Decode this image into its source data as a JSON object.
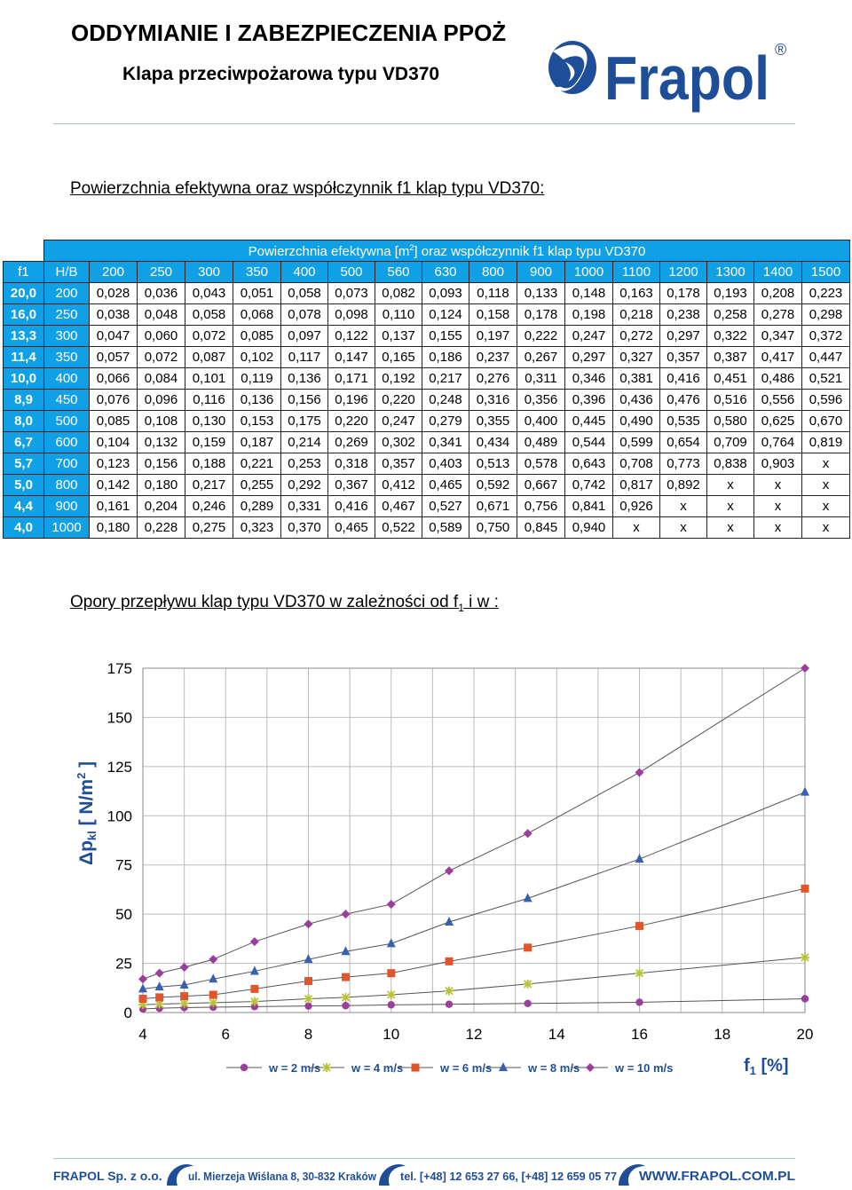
{
  "header": {
    "title": "ODDYMIANIE I ZABEZPIECZENIA PPOŻ",
    "subtitle": "Klapa przeciwpożarowa typu  VD370",
    "logo_text": "Frapol",
    "logo_reg": "®"
  },
  "section1_title": "Powierzchnia efektywna oraz współczynnik f1 klap typu VD370:",
  "table": {
    "caption_pre": "Powierzchnia efektywna [m",
    "caption_sup": "2",
    "caption_post": "] oraz współczynnik f1 klap typu VD370",
    "col_f1": "f1",
    "col_hb": "H/B",
    "widths": [
      "200",
      "250",
      "300",
      "350",
      "400",
      "500",
      "560",
      "630",
      "800",
      "900",
      "1000",
      "1100",
      "1200",
      "1300",
      "1400",
      "1500"
    ],
    "rows": [
      {
        "f1": "20,0",
        "hb": "200",
        "v": [
          "0,028",
          "0,036",
          "0,043",
          "0,051",
          "0,058",
          "0,073",
          "0,082",
          "0,093",
          "0,118",
          "0,133",
          "0,148",
          "0,163",
          "0,178",
          "0,193",
          "0,208",
          "0,223"
        ]
      },
      {
        "f1": "16,0",
        "hb": "250",
        "v": [
          "0,038",
          "0,048",
          "0,058",
          "0,068",
          "0,078",
          "0,098",
          "0,110",
          "0,124",
          "0,158",
          "0,178",
          "0,198",
          "0,218",
          "0,238",
          "0,258",
          "0,278",
          "0,298"
        ]
      },
      {
        "f1": "13,3",
        "hb": "300",
        "v": [
          "0,047",
          "0,060",
          "0,072",
          "0,085",
          "0,097",
          "0,122",
          "0,137",
          "0,155",
          "0,197",
          "0,222",
          "0,247",
          "0,272",
          "0,297",
          "0,322",
          "0,347",
          "0,372"
        ]
      },
      {
        "f1": "11,4",
        "hb": "350",
        "v": [
          "0,057",
          "0,072",
          "0,087",
          "0,102",
          "0,117",
          "0,147",
          "0,165",
          "0,186",
          "0,237",
          "0,267",
          "0,297",
          "0,327",
          "0,357",
          "0,387",
          "0,417",
          "0,447"
        ]
      },
      {
        "f1": "10,0",
        "hb": "400",
        "v": [
          "0,066",
          "0,084",
          "0,101",
          "0,119",
          "0,136",
          "0,171",
          "0,192",
          "0,217",
          "0,276",
          "0,311",
          "0,346",
          "0,381",
          "0,416",
          "0,451",
          "0,486",
          "0,521"
        ]
      },
      {
        "f1": "8,9",
        "hb": "450",
        "v": [
          "0,076",
          "0,096",
          "0,116",
          "0,136",
          "0,156",
          "0,196",
          "0,220",
          "0,248",
          "0,316",
          "0,356",
          "0,396",
          "0,436",
          "0,476",
          "0,516",
          "0,556",
          "0,596"
        ]
      },
      {
        "f1": "8,0",
        "hb": "500",
        "v": [
          "0,085",
          "0,108",
          "0,130",
          "0,153",
          "0,175",
          "0,220",
          "0,247",
          "0,279",
          "0,355",
          "0,400",
          "0,445",
          "0,490",
          "0,535",
          "0,580",
          "0,625",
          "0,670"
        ]
      },
      {
        "f1": "6,7",
        "hb": "600",
        "v": [
          "0,104",
          "0,132",
          "0,159",
          "0,187",
          "0,214",
          "0,269",
          "0,302",
          "0,341",
          "0,434",
          "0,489",
          "0,544",
          "0,599",
          "0,654",
          "0,709",
          "0,764",
          "0,819"
        ]
      },
      {
        "f1": "5,7",
        "hb": "700",
        "v": [
          "0,123",
          "0,156",
          "0,188",
          "0,221",
          "0,253",
          "0,318",
          "0,357",
          "0,403",
          "0,513",
          "0,578",
          "0,643",
          "0,708",
          "0,773",
          "0,838",
          "0,903",
          "x"
        ]
      },
      {
        "f1": "5,0",
        "hb": "800",
        "v": [
          "0,142",
          "0,180",
          "0,217",
          "0,255",
          "0,292",
          "0,367",
          "0,412",
          "0,465",
          "0,592",
          "0,667",
          "0,742",
          "0,817",
          "0,892",
          "x",
          "x",
          "x"
        ]
      },
      {
        "f1": "4,4",
        "hb": "900",
        "v": [
          "0,161",
          "0,204",
          "0,246",
          "0,289",
          "0,331",
          "0,416",
          "0,467",
          "0,527",
          "0,671",
          "0,756",
          "0,841",
          "0,926",
          "x",
          "x",
          "x",
          "x"
        ]
      },
      {
        "f1": "4,0",
        "hb": "1000",
        "v": [
          "0,180",
          "0,228",
          "0,275",
          "0,323",
          "0,370",
          "0,465",
          "0,522",
          "0,589",
          "0,750",
          "0,845",
          "0,940",
          "x",
          "x",
          "x",
          "x",
          "x"
        ]
      }
    ]
  },
  "section2": {
    "pre": "Opory przepływu klap typu VD370 w zależności od f",
    "sub": "1",
    "post": " i w :"
  },
  "chart_data": {
    "type": "line",
    "title": "",
    "xlabel": "f",
    "xlabel_sub": "1",
    "xlabel_unit": " [%]",
    "ylabel": "Δp",
    "ylabel_sub": "kl",
    "ylabel_unit": " [ N/m",
    "ylabel_sup": "2",
    "ylabel_end": " ]",
    "xlim": [
      4,
      20
    ],
    "ylim": [
      0,
      175
    ],
    "xticks": [
      4,
      6,
      8,
      10,
      12,
      14,
      16,
      18,
      20
    ],
    "yticks": [
      0,
      25,
      50,
      75,
      100,
      125,
      150,
      175
    ],
    "grid": true,
    "legend_position": "bottom",
    "series": [
      {
        "name": "w = 2 m/s",
        "color": "#9b3d9b",
        "marker": "circle",
        "x": [
          4,
          4.4,
          5,
          5.7,
          6.7,
          8,
          8.9,
          10,
          11.4,
          13.3,
          16,
          20
        ],
        "y": [
          1.8,
          2.2,
          2.5,
          2.7,
          3.0,
          3.3,
          3.5,
          3.9,
          4.2,
          4.6,
          5.2,
          7.0
        ]
      },
      {
        "name": "w = 4 m/s",
        "color": "#b8c23a",
        "marker": "star",
        "x": [
          4,
          4.4,
          5,
          5.7,
          6.7,
          8,
          8.9,
          10,
          11.4,
          13.3,
          16,
          20
        ],
        "y": [
          4,
          4.3,
          4.6,
          5,
          5.6,
          7,
          7.7,
          9,
          11,
          14.5,
          20,
          28
        ]
      },
      {
        "name": "w = 6 m/s",
        "color": "#e2552a",
        "marker": "square",
        "x": [
          4,
          4.4,
          5,
          5.7,
          6.7,
          8,
          8.9,
          10,
          11.4,
          13.3,
          16,
          20
        ],
        "y": [
          7,
          7.7,
          8.3,
          9,
          12,
          16,
          18,
          20,
          26,
          33,
          44,
          63
        ]
      },
      {
        "name": "w = 8 m/s",
        "color": "#3a5fb0",
        "marker": "triangle",
        "x": [
          4,
          4.4,
          5,
          5.7,
          6.7,
          8,
          8.9,
          10,
          11.4,
          13.3,
          16,
          20
        ],
        "y": [
          12,
          13,
          14,
          17,
          21,
          27,
          31,
          35,
          46,
          58,
          78,
          112
        ]
      },
      {
        "name": "w = 10 m/s",
        "color": "#9b3d9b",
        "marker": "diamond",
        "x": [
          4,
          4.4,
          5,
          5.7,
          6.7,
          8,
          8.9,
          10,
          11.4,
          13.3,
          16,
          20
        ],
        "y": [
          17,
          20,
          23,
          27,
          36,
          45,
          50,
          55,
          72,
          91,
          122,
          175
        ]
      }
    ]
  },
  "footer": {
    "company": "FRAPOL Sp. z o.o.",
    "address": "ul. Mierzeja Wiślana 8, 30-832 Kraków",
    "phone": "tel. [+48]  12 653 27 66, [+48]  12 659 05 77",
    "website": "WWW.FRAPOL.COM.PL",
    "color": "#1f4e99"
  }
}
